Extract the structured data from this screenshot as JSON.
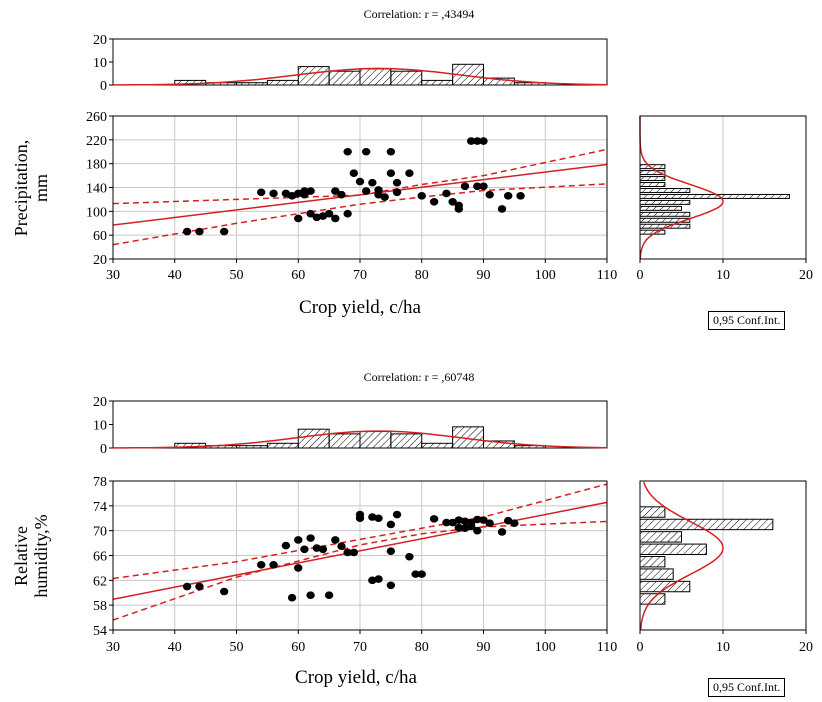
{
  "legend_label": "0,95 Conf.Int.",
  "colors": {
    "fit": "#d42020",
    "points": "#000000",
    "grid": "#c8c8c8",
    "hist_fill": "#ffffff"
  },
  "chart_data": [
    {
      "type": "scatter",
      "title": "Correlation: r = ,43494",
      "xlabel": "Crop yield, c/ha",
      "ylabel_lines": [
        "Precipitation,",
        "mm"
      ],
      "xlim": [
        30,
        110
      ],
      "ylim": [
        20,
        260
      ],
      "xticks": [
        30,
        40,
        50,
        60,
        70,
        80,
        90,
        100,
        110
      ],
      "yticks": [
        20,
        60,
        100,
        140,
        180,
        220,
        260
      ],
      "grid": true,
      "points": [
        [
          42,
          66
        ],
        [
          44,
          66
        ],
        [
          48,
          66
        ],
        [
          54,
          132
        ],
        [
          56,
          130
        ],
        [
          58,
          130
        ],
        [
          59,
          126
        ],
        [
          60,
          130
        ],
        [
          60,
          88
        ],
        [
          61,
          134
        ],
        [
          61,
          128
        ],
        [
          62,
          134
        ],
        [
          62,
          96
        ],
        [
          63,
          90
        ],
        [
          64,
          92
        ],
        [
          65,
          96
        ],
        [
          66,
          134
        ],
        [
          66,
          88
        ],
        [
          67,
          128
        ],
        [
          68,
          96
        ],
        [
          68,
          200
        ],
        [
          69,
          164
        ],
        [
          70,
          150
        ],
        [
          71,
          200
        ],
        [
          71,
          134
        ],
        [
          72,
          148
        ],
        [
          73,
          136
        ],
        [
          73,
          128
        ],
        [
          74,
          124
        ],
        [
          75,
          164
        ],
        [
          75,
          200
        ],
        [
          76,
          148
        ],
        [
          76,
          132
        ],
        [
          78,
          164
        ],
        [
          80,
          126
        ],
        [
          82,
          116
        ],
        [
          84,
          130
        ],
        [
          85,
          116
        ],
        [
          86,
          110
        ],
        [
          86,
          104
        ],
        [
          87,
          142
        ],
        [
          88,
          218
        ],
        [
          89,
          218
        ],
        [
          89,
          142
        ],
        [
          90,
          218
        ],
        [
          90,
          142
        ],
        [
          91,
          128
        ],
        [
          93,
          104
        ],
        [
          94,
          126
        ],
        [
          96,
          126
        ]
      ],
      "fit": {
        "slope": 1.27,
        "intercept": 38.9
      },
      "ci": {
        "lower": [
          [
            30,
            44
          ],
          [
            50,
            80
          ],
          [
            70,
            112
          ],
          [
            80,
            124
          ],
          [
            90,
            135
          ],
          [
            110,
            146
          ]
        ],
        "upper": [
          [
            30,
            113
          ],
          [
            50,
            120
          ],
          [
            70,
            127
          ],
          [
            80,
            145
          ],
          [
            90,
            160
          ],
          [
            110,
            204
          ]
        ]
      },
      "hist_top": {
        "ylim": [
          0,
          20
        ],
        "yticks": [
          0,
          10,
          20
        ],
        "bins": [
          [
            40,
            45,
            2
          ],
          [
            45,
            50,
            1
          ],
          [
            50,
            55,
            1
          ],
          [
            55,
            60,
            2
          ],
          [
            60,
            65,
            8
          ],
          [
            65,
            70,
            6
          ],
          [
            70,
            75,
            7
          ],
          [
            75,
            80,
            6
          ],
          [
            80,
            85,
            2
          ],
          [
            85,
            90,
            9
          ],
          [
            90,
            95,
            3
          ],
          [
            95,
            100,
            1
          ]
        ]
      },
      "hist_right": {
        "xlim": [
          0,
          20
        ],
        "xticks": [
          0,
          10,
          20
        ],
        "bins": [
          [
            60,
            70,
            3
          ],
          [
            70,
            80,
            6
          ],
          [
            80,
            90,
            6
          ],
          [
            90,
            100,
            6
          ],
          [
            100,
            110,
            5
          ],
          [
            110,
            120,
            6
          ],
          [
            120,
            130,
            18
          ],
          [
            130,
            140,
            6
          ],
          [
            140,
            150,
            3
          ],
          [
            150,
            160,
            3
          ],
          [
            160,
            170,
            3
          ],
          [
            170,
            180,
            3
          ]
        ]
      }
    },
    {
      "type": "scatter",
      "title": "Correlation: r = ,60748",
      "xlabel": "Crop yield, c/ha",
      "ylabel_lines": [
        "Relative",
        "humidity,%"
      ],
      "xlim": [
        30,
        110
      ],
      "ylim": [
        54,
        78
      ],
      "xticks": [
        30,
        40,
        50,
        60,
        70,
        80,
        90,
        100,
        110
      ],
      "yticks": [
        54,
        58,
        62,
        66,
        70,
        74,
        78
      ],
      "grid": true,
      "points": [
        [
          42,
          61
        ],
        [
          44,
          61
        ],
        [
          48,
          60.2
        ],
        [
          54,
          64.5
        ],
        [
          56,
          64.5
        ],
        [
          58,
          67.6
        ],
        [
          59,
          59.2
        ],
        [
          60,
          64
        ],
        [
          60,
          68.5
        ],
        [
          61,
          67
        ],
        [
          62,
          68.8
        ],
        [
          62,
          59.6
        ],
        [
          63,
          67.2
        ],
        [
          64,
          67
        ],
        [
          65,
          59.6
        ],
        [
          66,
          68.5
        ],
        [
          67,
          67.5
        ],
        [
          68,
          66.5
        ],
        [
          69,
          66.5
        ],
        [
          70,
          72.6
        ],
        [
          70,
          72
        ],
        [
          72,
          72.2
        ],
        [
          72,
          62
        ],
        [
          73,
          62.2
        ],
        [
          73,
          72
        ],
        [
          75,
          66.7
        ],
        [
          75,
          61.2
        ],
        [
          75,
          71
        ],
        [
          76,
          72.6
        ],
        [
          78,
          65.8
        ],
        [
          79,
          63
        ],
        [
          80,
          63
        ],
        [
          82,
          71.9
        ],
        [
          84,
          71.3
        ],
        [
          85,
          71.3
        ],
        [
          86,
          71.7
        ],
        [
          86,
          70.5
        ],
        [
          87,
          70.4
        ],
        [
          87,
          71.5
        ],
        [
          88,
          70.7
        ],
        [
          88,
          71.3
        ],
        [
          89,
          71.8
        ],
        [
          89,
          70
        ],
        [
          90,
          71.7
        ],
        [
          91,
          71.2
        ],
        [
          93,
          69.8
        ],
        [
          94,
          71.6
        ],
        [
          95,
          71.2
        ]
      ],
      "fit": {
        "slope": 0.195,
        "intercept": 53.1
      },
      "ci": {
        "lower": [
          [
            30,
            55.6
          ],
          [
            50,
            62.5
          ],
          [
            70,
            67.7
          ],
          [
            80,
            69.5
          ],
          [
            90,
            70.6
          ],
          [
            110,
            71.5
          ]
        ],
        "upper": [
          [
            30,
            62.3
          ],
          [
            50,
            65
          ],
          [
            70,
            68.6
          ],
          [
            80,
            70.4
          ],
          [
            90,
            72.2
          ],
          [
            110,
            77.5
          ]
        ]
      },
      "hist_top": {
        "ylim": [
          0,
          20
        ],
        "yticks": [
          0,
          10,
          20
        ],
        "bins": [
          [
            40,
            45,
            2
          ],
          [
            45,
            50,
            1
          ],
          [
            50,
            55,
            1
          ],
          [
            55,
            60,
            2
          ],
          [
            60,
            65,
            8
          ],
          [
            65,
            70,
            6
          ],
          [
            70,
            75,
            7
          ],
          [
            75,
            80,
            6
          ],
          [
            80,
            85,
            2
          ],
          [
            85,
            90,
            9
          ],
          [
            90,
            95,
            3
          ],
          [
            95,
            100,
            1
          ]
        ]
      },
      "hist_right": {
        "xlim": [
          0,
          20
        ],
        "xticks": [
          0,
          10,
          20
        ],
        "bins": [
          [
            58,
            60,
            3
          ],
          [
            60,
            62,
            6
          ],
          [
            62,
            64,
            4
          ],
          [
            64,
            66,
            3
          ],
          [
            66,
            68,
            8
          ],
          [
            68,
            70,
            5
          ],
          [
            70,
            72,
            16
          ],
          [
            72,
            74,
            3
          ]
        ]
      }
    }
  ]
}
